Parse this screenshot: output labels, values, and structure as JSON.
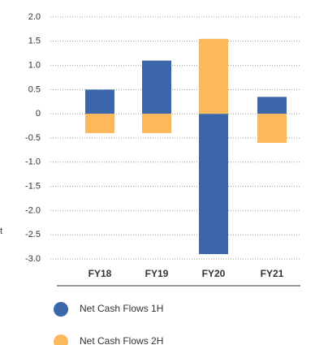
{
  "chart_data": {
    "type": "stacked-bar",
    "ylabel": "t",
    "categories": [
      "FY18",
      "FY19",
      "FY20",
      "FY21"
    ],
    "series": [
      {
        "name": "Net Cash Flows 1H",
        "color": "#3b66a9",
        "values": [
          0.5,
          1.1,
          -2.9,
          0.35
        ]
      },
      {
        "name": "Net Cash Flows 2H",
        "color": "#fbb95c",
        "values": [
          -0.4,
          -0.4,
          1.55,
          -0.6
        ]
      }
    ],
    "ylim": [
      -3.0,
      2.0
    ],
    "yticks": [
      {
        "value": 2,
        "label": "2.0"
      },
      {
        "value": 1.5,
        "label": "1.5"
      },
      {
        "value": 1,
        "label": "1.0"
      },
      {
        "value": 0.5,
        "label": "0.5"
      },
      0,
      {
        "value": -0.5,
        "label": "-0.5"
      },
      {
        "value": -1,
        "label": "-1.0"
      },
      {
        "value": -1.5,
        "label": "-1.5"
      },
      {
        "value": -2,
        "label": "-2.0"
      },
      {
        "value": -2.5,
        "label": "-2.5"
      },
      {
        "value": -3,
        "label": "-3.0"
      }
    ],
    "grid": true
  }
}
